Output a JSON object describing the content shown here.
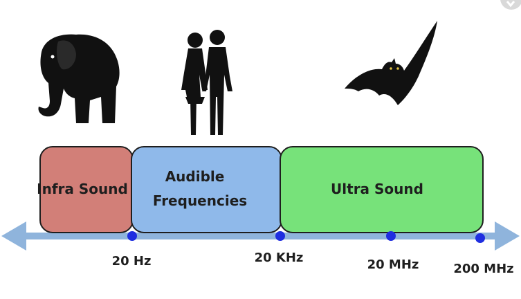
{
  "bands": [
    {
      "id": "infra",
      "lines": [
        "Infra Sound"
      ],
      "fill": "#d27f78"
    },
    {
      "id": "audible",
      "lines": [
        "Audible",
        "Frequencies"
      ],
      "fill": "#8fb9ea"
    },
    {
      "id": "ultra",
      "lines": [
        "Ultra Sound"
      ],
      "fill": "#77e27a"
    }
  ],
  "frequency_markers": [
    {
      "label": "20 Hz"
    },
    {
      "label": "20 KHz"
    },
    {
      "label": "20 MHz"
    },
    {
      "label": "200 MHz"
    }
  ],
  "icons": [
    "elephant-icon",
    "people-icon",
    "bat-icon"
  ],
  "colors": {
    "axis": "#8fb4dc",
    "marker": "#1f2ee0",
    "outline": "#1e1e1e",
    "silhouette": "#111111"
  }
}
